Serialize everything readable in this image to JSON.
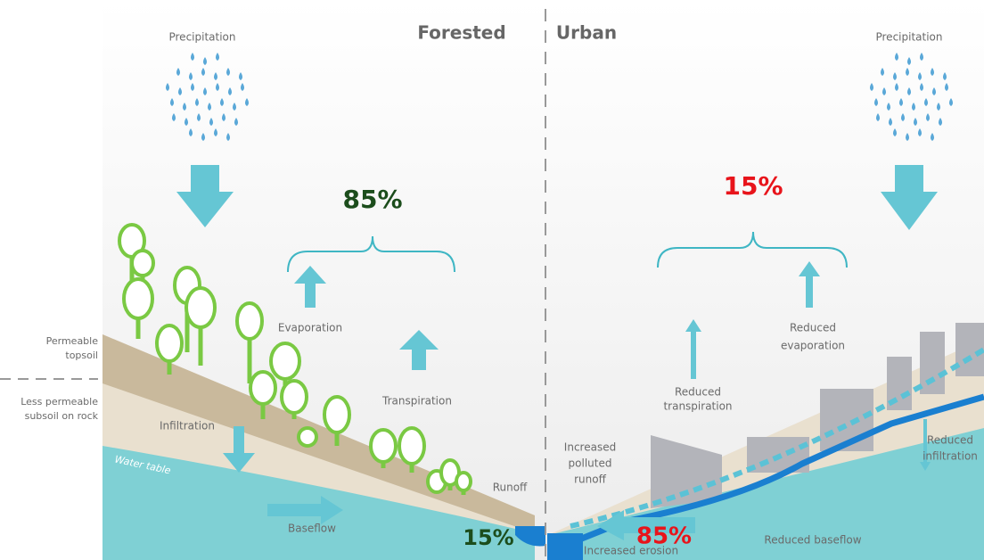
{
  "forested": {
    "title": "Forested",
    "precipitation": "Precipitation",
    "percent_up": "85%",
    "evaporation": "Evaporation",
    "transpiration": "Transpiration",
    "infiltration": "Infiltration",
    "water_table": "Water table",
    "runoff": "Runoff",
    "baseflow": "Baseflow",
    "percent_runoff": "15%"
  },
  "urban": {
    "title": "Urban",
    "precipitation": "Precipitation",
    "percent_up": "15%",
    "reduced_transpiration": [
      "Reduced",
      "transpiration"
    ],
    "reduced_evaporation": [
      "Reduced",
      "evaporation"
    ],
    "increased_polluted_runoff": [
      "Increased",
      "polluted",
      "runoff"
    ],
    "percent_runoff": "85%",
    "increased_erosion": "Increased erosion",
    "reduced_baseflow": "Reduced baseflow",
    "reduced_infiltration": [
      "Reduced",
      "infiltration"
    ]
  },
  "legend": {
    "permeable_topsoil": [
      "Permeable",
      "topsoil"
    ],
    "less_permeable": [
      "Less permeable",
      "subsoil on rock"
    ]
  }
}
